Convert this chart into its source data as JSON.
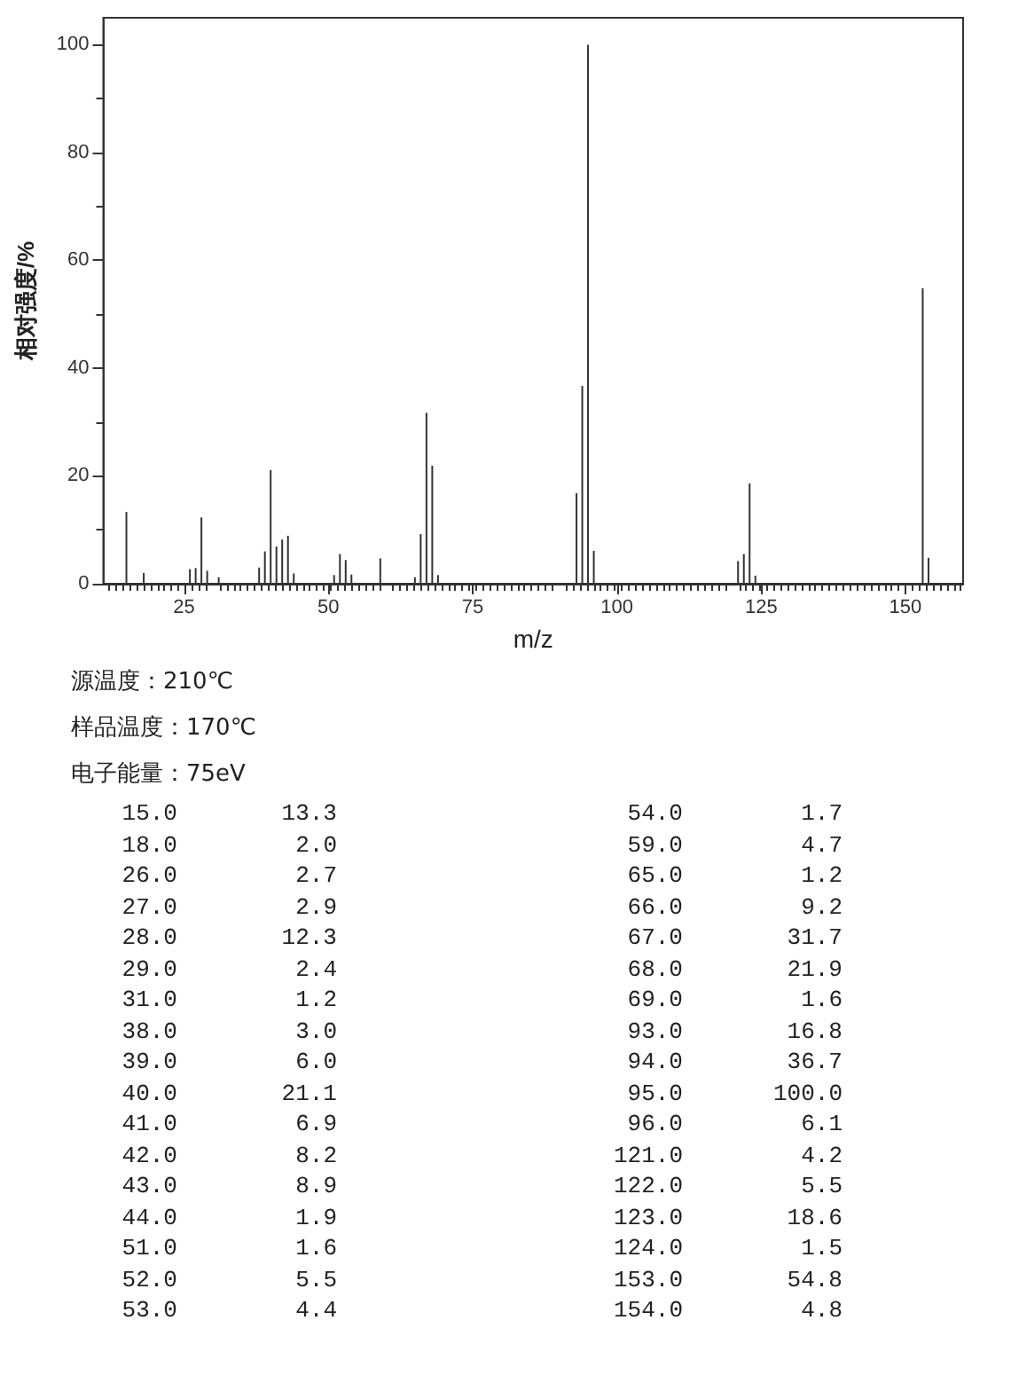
{
  "chart_data": {
    "type": "bar",
    "xlabel": "m/z",
    "ylabel": "相对强度/%",
    "x": [
      15,
      18,
      26,
      27,
      28,
      29,
      31,
      38,
      39,
      40,
      41,
      42,
      43,
      44,
      51,
      52,
      53,
      54,
      59,
      65,
      66,
      67,
      68,
      69,
      93,
      94,
      95,
      96,
      121,
      122,
      123,
      124,
      153,
      154
    ],
    "values": [
      13.3,
      2.0,
      2.7,
      2.9,
      12.3,
      2.4,
      1.2,
      3.0,
      6.0,
      21.1,
      6.9,
      8.2,
      8.9,
      1.9,
      1.6,
      5.5,
      4.4,
      1.7,
      4.7,
      1.2,
      9.2,
      31.7,
      21.9,
      1.6,
      16.8,
      36.7,
      100.0,
      6.1,
      4.2,
      5.5,
      18.6,
      1.5,
      54.8,
      4.8
    ],
    "color": "#333333",
    "xlim": [
      11,
      160
    ],
    "xticks": [
      25,
      50,
      75,
      100,
      125,
      150
    ],
    "ylim": [
      0,
      105
    ],
    "yticks": [
      0,
      20,
      40,
      60,
      80,
      100
    ],
    "grid": false,
    "annotations": [
      "源温度：210℃",
      "样品温度：170℃",
      "电子能量：75eV",
      "15.0",
      "13.3",
      "54.0",
      "1.7",
      "18.0",
      "2.0",
      "59.0",
      "4.7",
      "26.0",
      "2.7",
      "65.0",
      "1.2",
      "27.0",
      "2.9",
      "66.0",
      "9.2",
      "28.0",
      "12.3",
      "67.0",
      "31.7",
      "29.0",
      "2.4",
      "68.0",
      "21.9",
      "31.0",
      "1.2",
      "69.0",
      "1.6",
      "38.0",
      "3.0",
      "93.0",
      "16.8",
      "39.0",
      "6.0",
      "94.0",
      "36.7",
      "40.0",
      "21.1",
      "95.0",
      "100.0",
      "41.0",
      "6.9",
      "96.0",
      "6.1",
      "42.0",
      "8.2",
      "121.0",
      "4.2",
      "43.0",
      "8.9",
      "122.0",
      "5.5",
      "44.0",
      "1.9",
      "123.0",
      "18.6",
      "51.0",
      "1.6",
      "124.0",
      "1.5",
      "52.0",
      "5.5",
      "153.0",
      "54.8",
      "53.0",
      "4.4",
      "154.0",
      "4.8"
    ]
  }
}
